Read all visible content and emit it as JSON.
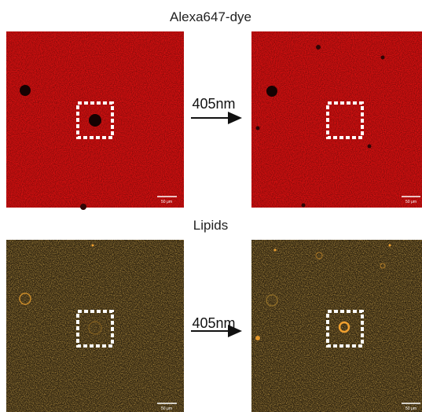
{
  "rows": [
    {
      "label": "Alexa647-dye",
      "arrow_label": "405nm",
      "scale_bars": [
        "50 μm",
        "50 μm"
      ]
    },
    {
      "label": "Lipids",
      "arrow_label": "405nm",
      "scale_bars": [
        "50 μm",
        "50 μm"
      ]
    }
  ]
}
